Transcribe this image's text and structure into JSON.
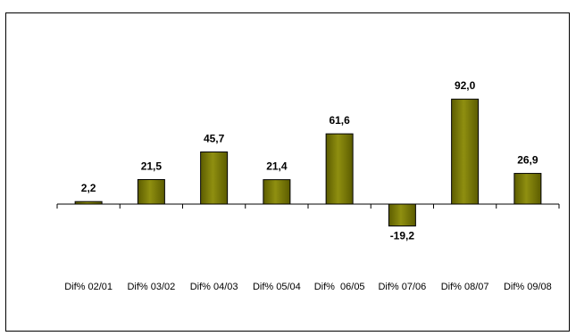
{
  "chart_data": {
    "type": "bar",
    "title": "",
    "xlabel": "",
    "ylabel": "",
    "categories": [
      "Dif% 02/01",
      "Dif% 03/02",
      "Dif% 04/03",
      "Dif% 05/04",
      "Dif%  06/05",
      "Dif% 07/06",
      "Dif% 08/07",
      "Dif% 09/08"
    ],
    "values": [
      2.2,
      21.5,
      45.7,
      21.4,
      61.6,
      -19.2,
      92.0,
      26.9
    ],
    "value_labels": [
      "2,2",
      "21,5",
      "45,7",
      "21,4",
      "61,6",
      "-19,2",
      "92,0",
      "26,9"
    ],
    "ylim": [
      -25,
      100
    ],
    "grid": false,
    "legend": "none",
    "bar_color": "#808000",
    "bar_outline": "#000000"
  }
}
